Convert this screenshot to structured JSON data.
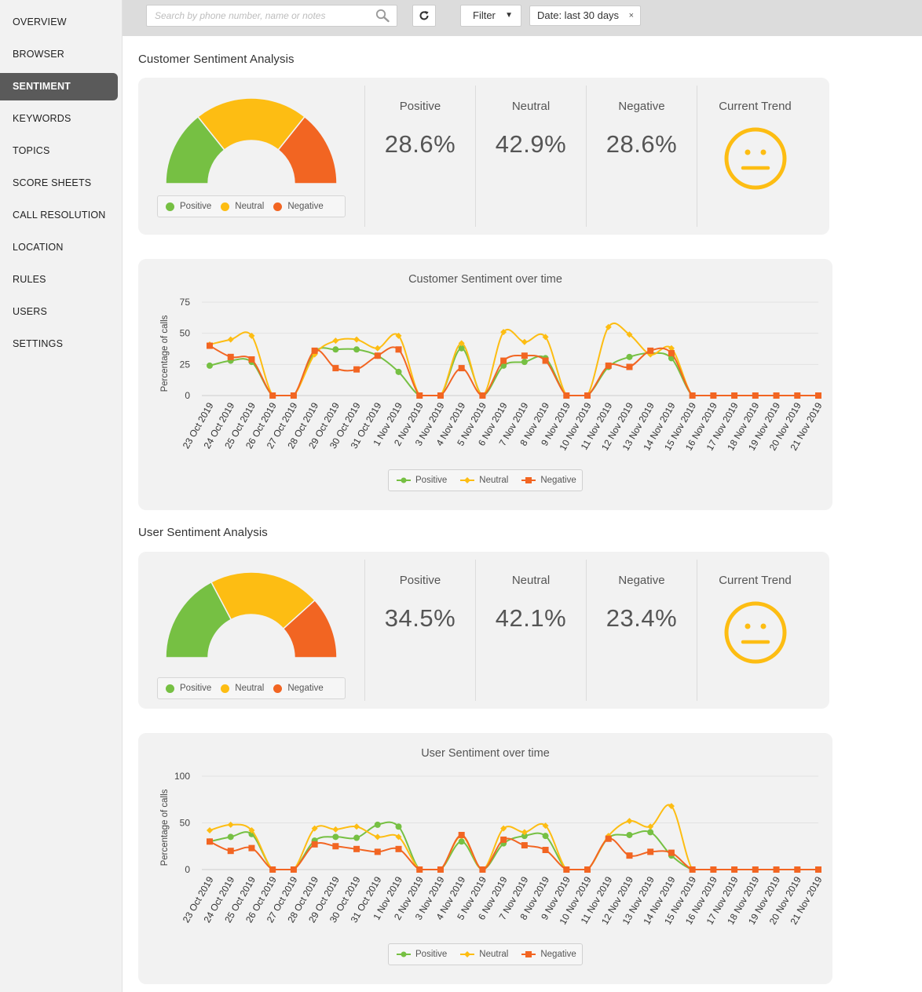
{
  "sidebar": {
    "items": [
      {
        "label": "OVERVIEW",
        "active": false
      },
      {
        "label": "BROWSER",
        "active": false
      },
      {
        "label": "SENTIMENT",
        "active": true
      },
      {
        "label": "KEYWORDS",
        "active": false
      },
      {
        "label": "TOPICS",
        "active": false
      },
      {
        "label": "SCORE SHEETS",
        "active": false
      },
      {
        "label": "CALL RESOLUTION",
        "active": false
      },
      {
        "label": "LOCATION",
        "active": false
      },
      {
        "label": "RULES",
        "active": false
      },
      {
        "label": "USERS",
        "active": false
      },
      {
        "label": "SETTINGS",
        "active": false
      }
    ]
  },
  "toolbar": {
    "search_placeholder": "Search by phone number, name or notes",
    "search_value": "",
    "search_icon": "search-icon",
    "refresh_icon": "refresh-icon",
    "filter_label": "Filter",
    "filter_caret": "▼",
    "date_chip_label": "Date: last 30 days",
    "date_chip_remove": "×"
  },
  "colors": {
    "positive": "#76c043",
    "neutral": "#fdbd13",
    "negative": "#f26522",
    "trend_face": "#fdbd13"
  },
  "customer": {
    "title": "Customer Sentiment Analysis",
    "legend": {
      "positive": "Positive",
      "neutral": "Neutral",
      "negative": "Negative"
    },
    "stats": {
      "positive_label": "Positive",
      "positive_value": "28.6%",
      "neutral_label": "Neutral",
      "neutral_value": "42.9%",
      "negative_label": "Negative",
      "negative_value": "28.6%",
      "trend_label": "Current Trend",
      "trend_icon": "neutral-face-icon"
    },
    "gauge": {
      "positive": 28.6,
      "neutral": 42.9,
      "negative": 28.6
    }
  },
  "user": {
    "title": "User Sentiment Analysis",
    "legend": {
      "positive": "Positive",
      "neutral": "Neutral",
      "negative": "Negative"
    },
    "stats": {
      "positive_label": "Positive",
      "positive_value": "34.5%",
      "neutral_label": "Neutral",
      "neutral_value": "42.1%",
      "negative_label": "Negative",
      "negative_value": "23.4%",
      "trend_label": "Current Trend",
      "trend_icon": "neutral-face-icon"
    },
    "gauge": {
      "positive": 34.5,
      "neutral": 42.1,
      "negative": 23.4
    }
  },
  "chart_data": [
    {
      "type": "line",
      "title": "Customer Sentiment over time",
      "xlabel": "",
      "ylabel": "Percentage of calls",
      "ylim": [
        0,
        75
      ],
      "yticks": [
        0,
        25,
        50,
        75
      ],
      "grid": true,
      "legend_position": "bottom-center",
      "categories": [
        "23 Oct 2019",
        "24 Oct 2019",
        "25 Oct 2019",
        "26 Oct 2019",
        "27 Oct 2019",
        "28 Oct 2019",
        "29 Oct 2019",
        "30 Oct 2019",
        "31 Oct 2019",
        "1 Nov 2019",
        "2 Nov 2019",
        "3 Nov 2019",
        "4 Nov 2019",
        "5 Nov 2019",
        "6 Nov 2019",
        "7 Nov 2019",
        "8 Nov 2019",
        "9 Nov 2019",
        "10 Nov 2019",
        "11 Nov 2019",
        "12 Nov 2019",
        "13 Nov 2019",
        "14 Nov 2019",
        "15 Nov 2019",
        "16 Nov 2019",
        "17 Nov 2019",
        "18 Nov 2019",
        "19 Nov 2019",
        "20 Nov 2019",
        "21 Nov 2019"
      ],
      "series": [
        {
          "name": "Positive",
          "color": "#76c043",
          "marker": "circle",
          "values": [
            24,
            28,
            27,
            0,
            0,
            35,
            37,
            37,
            32,
            19,
            0,
            0,
            38,
            0,
            24,
            27,
            30,
            0,
            0,
            23,
            31,
            34,
            30,
            0,
            0,
            0,
            0,
            0,
            0,
            0
          ]
        },
        {
          "name": "Neutral",
          "color": "#fdbd13",
          "marker": "diamond",
          "values": [
            41,
            45,
            48,
            0,
            0,
            33,
            44,
            45,
            38,
            48,
            0,
            0,
            42,
            0,
            51,
            43,
            47,
            0,
            0,
            55,
            49,
            33,
            38,
            0,
            0,
            0,
            0,
            0,
            0,
            0
          ]
        },
        {
          "name": "Negative",
          "color": "#f26522",
          "marker": "square",
          "values": [
            40,
            31,
            29,
            0,
            0,
            36,
            22,
            21,
            32,
            37,
            0,
            0,
            22,
            0,
            28,
            32,
            28,
            0,
            0,
            24,
            23,
            36,
            34,
            0,
            0,
            0,
            0,
            0,
            0,
            0
          ]
        }
      ]
    },
    {
      "type": "line",
      "title": "User Sentiment over time",
      "xlabel": "",
      "ylabel": "Percentage of calls",
      "ylim": [
        0,
        100
      ],
      "yticks": [
        0,
        50,
        100
      ],
      "grid": true,
      "legend_position": "bottom-center",
      "categories": [
        "23 Oct 2019",
        "24 Oct 2019",
        "25 Oct 2019",
        "26 Oct 2019",
        "27 Oct 2019",
        "28 Oct 2019",
        "29 Oct 2019",
        "30 Oct 2019",
        "31 Oct 2019",
        "1 Nov 2019",
        "2 Nov 2019",
        "3 Nov 2019",
        "4 Nov 2019",
        "5 Nov 2019",
        "6 Nov 2019",
        "7 Nov 2019",
        "8 Nov 2019",
        "9 Nov 2019",
        "10 Nov 2019",
        "11 Nov 2019",
        "12 Nov 2019",
        "13 Nov 2019",
        "14 Nov 2019",
        "15 Nov 2019",
        "16 Nov 2019",
        "17 Nov 2019",
        "18 Nov 2019",
        "19 Nov 2019",
        "20 Nov 2019",
        "21 Nov 2019"
      ],
      "series": [
        {
          "name": "Positive",
          "color": "#76c043",
          "marker": "circle",
          "values": [
            30,
            35,
            38,
            0,
            0,
            31,
            35,
            34,
            48,
            46,
            0,
            0,
            30,
            0,
            28,
            36,
            36,
            0,
            0,
            34,
            37,
            40,
            15,
            0,
            0,
            0,
            0,
            0,
            0,
            0
          ]
        },
        {
          "name": "Neutral",
          "color": "#fdbd13",
          "marker": "diamond",
          "values": [
            42,
            48,
            42,
            0,
            0,
            44,
            43,
            46,
            35,
            35,
            0,
            0,
            36,
            0,
            44,
            40,
            47,
            0,
            0,
            36,
            52,
            46,
            68,
            0,
            0,
            0,
            0,
            0,
            0,
            0
          ]
        },
        {
          "name": "Negative",
          "color": "#f26522",
          "marker": "square",
          "values": [
            30,
            20,
            23,
            0,
            0,
            27,
            25,
            22,
            19,
            22,
            0,
            0,
            37,
            0,
            32,
            26,
            21,
            0,
            0,
            33,
            15,
            19,
            18,
            0,
            0,
            0,
            0,
            0,
            0,
            0
          ]
        }
      ]
    }
  ]
}
